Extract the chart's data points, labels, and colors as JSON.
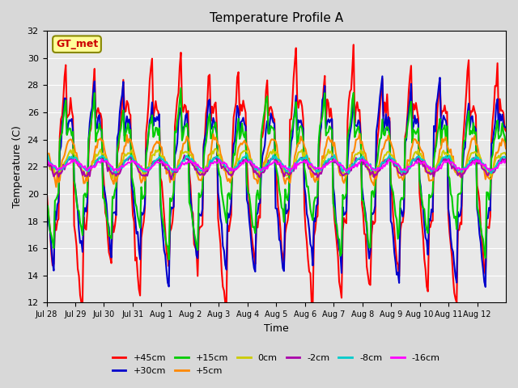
{
  "title": "Temperature Profile A",
  "xlabel": "Time",
  "ylabel": "Temperature (C)",
  "ylim": [
    12,
    32
  ],
  "series": [
    {
      "label": "+45cm",
      "color": "#ff0000",
      "lw": 1.5
    },
    {
      "label": "+30cm",
      "color": "#0000cc",
      "lw": 1.5
    },
    {
      "label": "+15cm",
      "color": "#00cc00",
      "lw": 1.5
    },
    {
      "label": "+5cm",
      "color": "#ff8800",
      "lw": 1.5
    },
    {
      "label": "0cm",
      "color": "#cccc00",
      "lw": 1.5
    },
    {
      "label": "-2cm",
      "color": "#aa00aa",
      "lw": 1.5
    },
    {
      "label": "-8cm",
      "color": "#00cccc",
      "lw": 1.5
    },
    {
      "label": "-16cm",
      "color": "#ff00ff",
      "lw": 1.5
    }
  ],
  "xtick_labels": [
    "Jul 28",
    "Jul 29",
    "Jul 30",
    "Jul 31",
    "Aug 1",
    "Aug 2",
    "Aug 3",
    "Aug 4",
    "Aug 5",
    "Aug 6",
    "Aug 7",
    "Aug 8",
    "Aug 9",
    "Aug 10",
    "Aug 11",
    "Aug 12"
  ],
  "legend_label": "GT_met",
  "legend_color": "#cc0000",
  "legend_bg": "#ffff99",
  "legend_border": "#888800",
  "n_days": 16,
  "pts_per_day": 24
}
